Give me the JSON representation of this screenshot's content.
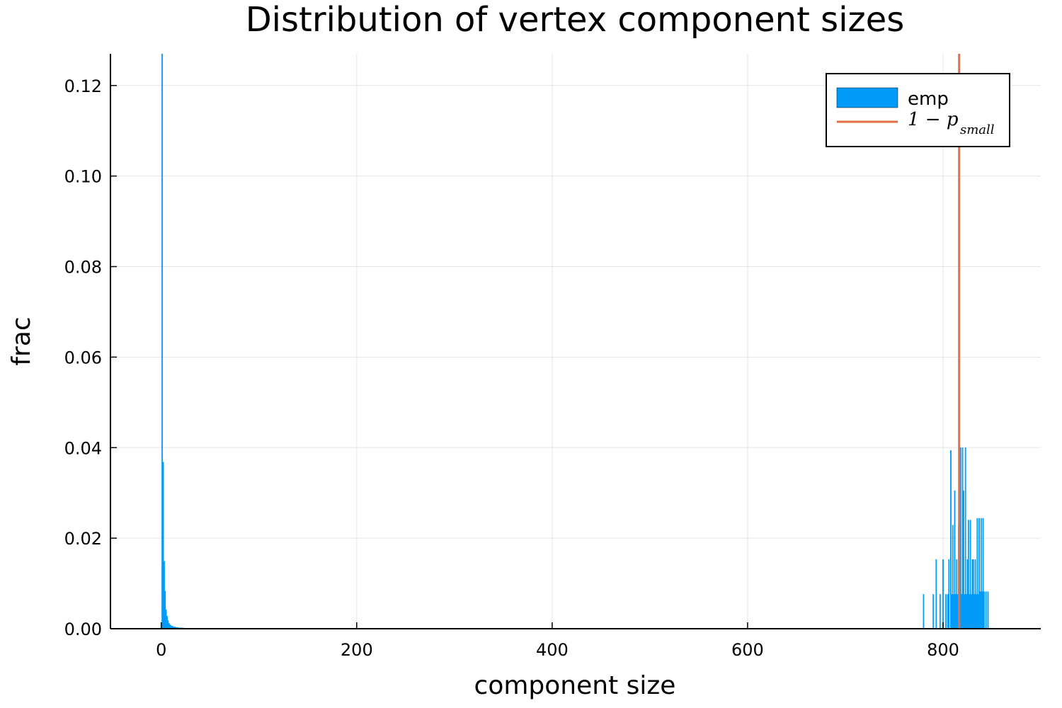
{
  "chart_data": {
    "type": "bar",
    "title": "Distribution of vertex component sizes",
    "xlabel": "component size",
    "ylabel": "frac",
    "xlim": [
      -52,
      900
    ],
    "ylim": [
      0,
      0.127
    ],
    "xticks": [
      0,
      200,
      400,
      600,
      800
    ],
    "xtick_labels": [
      "0",
      "200",
      "400",
      "600",
      "800"
    ],
    "yticks": [
      0,
      0.02,
      0.04,
      0.06,
      0.08,
      0.1,
      0.12
    ],
    "ytick_labels": [
      "0.00",
      "0.02",
      "0.04",
      "0.06",
      "0.08",
      "0.10",
      "0.12"
    ],
    "grid": true,
    "legend_position": "top-right",
    "colors": {
      "hist": "#009af9",
      "line": "#e26f46"
    },
    "series": [
      {
        "name": "emp",
        "kind": "histogram",
        "bin_width": 1,
        "x": [
          1,
          2,
          3,
          4,
          5,
          6,
          7,
          8,
          9,
          10,
          11,
          12,
          13,
          14,
          15,
          16,
          17,
          18,
          19,
          20,
          21,
          22,
          24,
          26,
          28,
          30,
          780,
          790,
          793,
          797,
          800,
          803,
          805,
          806,
          808,
          809,
          810,
          811,
          812,
          813,
          814,
          815,
          816,
          817,
          818,
          819,
          820,
          821,
          822,
          823,
          824,
          825,
          826,
          827,
          828,
          829,
          830,
          831,
          832,
          833,
          834,
          835,
          836,
          837,
          838,
          839,
          840,
          841,
          842,
          844,
          846
        ],
        "values": [
          0.127,
          0.0368,
          0.0149,
          0.0083,
          0.0042,
          0.0028,
          0.0018,
          0.0012,
          0.0009,
          0.0007,
          0.0006,
          0.0005,
          0.0004,
          0.0004,
          0.0003,
          0.0003,
          0.0003,
          0.0002,
          0.0002,
          0.0002,
          0.0002,
          0.0002,
          0.0001,
          0.0001,
          0.0001,
          0.0001,
          0.0076,
          0.0076,
          0.0153,
          0.0076,
          0.0153,
          0.0076,
          0.0076,
          0.0153,
          0.0394,
          0.0076,
          0.0229,
          0.0076,
          0.0305,
          0.0076,
          0.0153,
          0.0076,
          0.0229,
          0.024,
          0.04,
          0.0076,
          0.04,
          0.0305,
          0.0076,
          0.04,
          0.0076,
          0.0153,
          0.024,
          0.0076,
          0.024,
          0.0076,
          0.0153,
          0.0153,
          0.0076,
          0.0153,
          0.0076,
          0.0244,
          0.0076,
          0.0244,
          0.0082,
          0.0244,
          0.0082,
          0.0244,
          0.0082,
          0.0082,
          0.0082
        ]
      },
      {
        "name": "1 − p_small",
        "kind": "vline",
        "x": 816.5
      }
    ],
    "legend": {
      "hist_label": "emp",
      "line_main": "1 − p",
      "line_sub": "small"
    }
  }
}
